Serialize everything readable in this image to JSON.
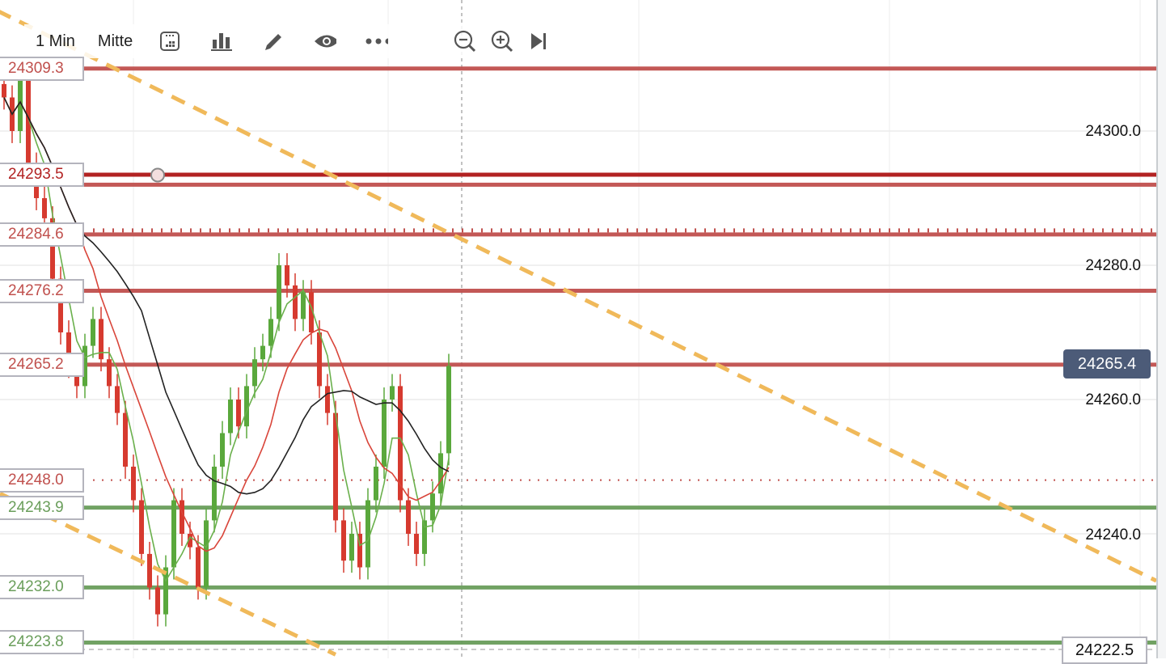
{
  "toolbar": {
    "interval": "1 Min",
    "mode": "Mitte",
    "icons": [
      "calendar-icon",
      "bar-chart-icon",
      "pencil-icon",
      "eye-icon",
      "more-icon",
      "zoom-out-icon",
      "zoom-in-icon",
      "skip-to-end-icon"
    ]
  },
  "colors": {
    "red": "#c0504d",
    "dark_red": "#b22222",
    "green": "#6a9e5b",
    "trend": "#f0b95a",
    "candle_up": "#5aa83c",
    "candle_down": "#d63a2f",
    "ma_fast": "#6ab04c",
    "ma_mid": "#d9453a",
    "ma_slow": "#222222",
    "tag_bg": "#4c5b78"
  },
  "price_axis": {
    "ticks": [
      "24300.0",
      "24280.0",
      "24260.0",
      "24240.0"
    ],
    "tick_values": [
      24300,
      24280,
      24260,
      24240
    ],
    "current_price": "24265.4",
    "bottom_price": "24222.5"
  },
  "levels": [
    {
      "label": "24309.3",
      "price": 24309.3,
      "color": "red",
      "style": "solid"
    },
    {
      "label": "24293.5",
      "price": 24293.5,
      "color": "dark_red",
      "style": "solid"
    },
    {
      "label": "",
      "price": 24292.0,
      "color": "red",
      "style": "solid"
    },
    {
      "label": "24284.6",
      "price": 24284.6,
      "color": "red",
      "style": "ticked"
    },
    {
      "label": "24276.2",
      "price": 24276.2,
      "color": "red",
      "style": "solid"
    },
    {
      "label": "24265.2",
      "price": 24265.2,
      "color": "red",
      "style": "solid"
    },
    {
      "label": "24248.0",
      "price": 24248.0,
      "color": "red",
      "style": "dotted"
    },
    {
      "label": "24243.9",
      "price": 24243.9,
      "color": "green",
      "style": "solid"
    },
    {
      "label": "24232.0",
      "price": 24232.0,
      "color": "green",
      "style": "solid"
    },
    {
      "label": "24223.8",
      "price": 24223.8,
      "color": "green",
      "style": "solid"
    }
  ],
  "trendlines": [
    {
      "from": [
        -3.5,
        24319.5
      ],
      "to": [
        142.5,
        24233.0
      ]
    },
    {
      "from": [
        -0.5,
        24246.0
      ],
      "to": [
        41,
        24222.0
      ]
    }
  ],
  "closes": [
    24305,
    24300,
    24308,
    24295,
    24290,
    24287,
    24278,
    24270,
    24265,
    24262,
    24268,
    24272,
    24266,
    24262,
    24258,
    24250,
    24245,
    24237,
    24232,
    24228,
    24235,
    24245,
    24240,
    24238,
    24232,
    24242,
    24250,
    24255,
    24260,
    24256,
    24262,
    24266,
    24268,
    24272,
    24280,
    24277,
    24272,
    24276,
    24270,
    24262,
    24258,
    24242,
    24236,
    24240,
    24235,
    24245,
    24250,
    24260,
    24262,
    24245,
    24240,
    24237,
    24242,
    24246,
    24252,
    24265
  ]
}
